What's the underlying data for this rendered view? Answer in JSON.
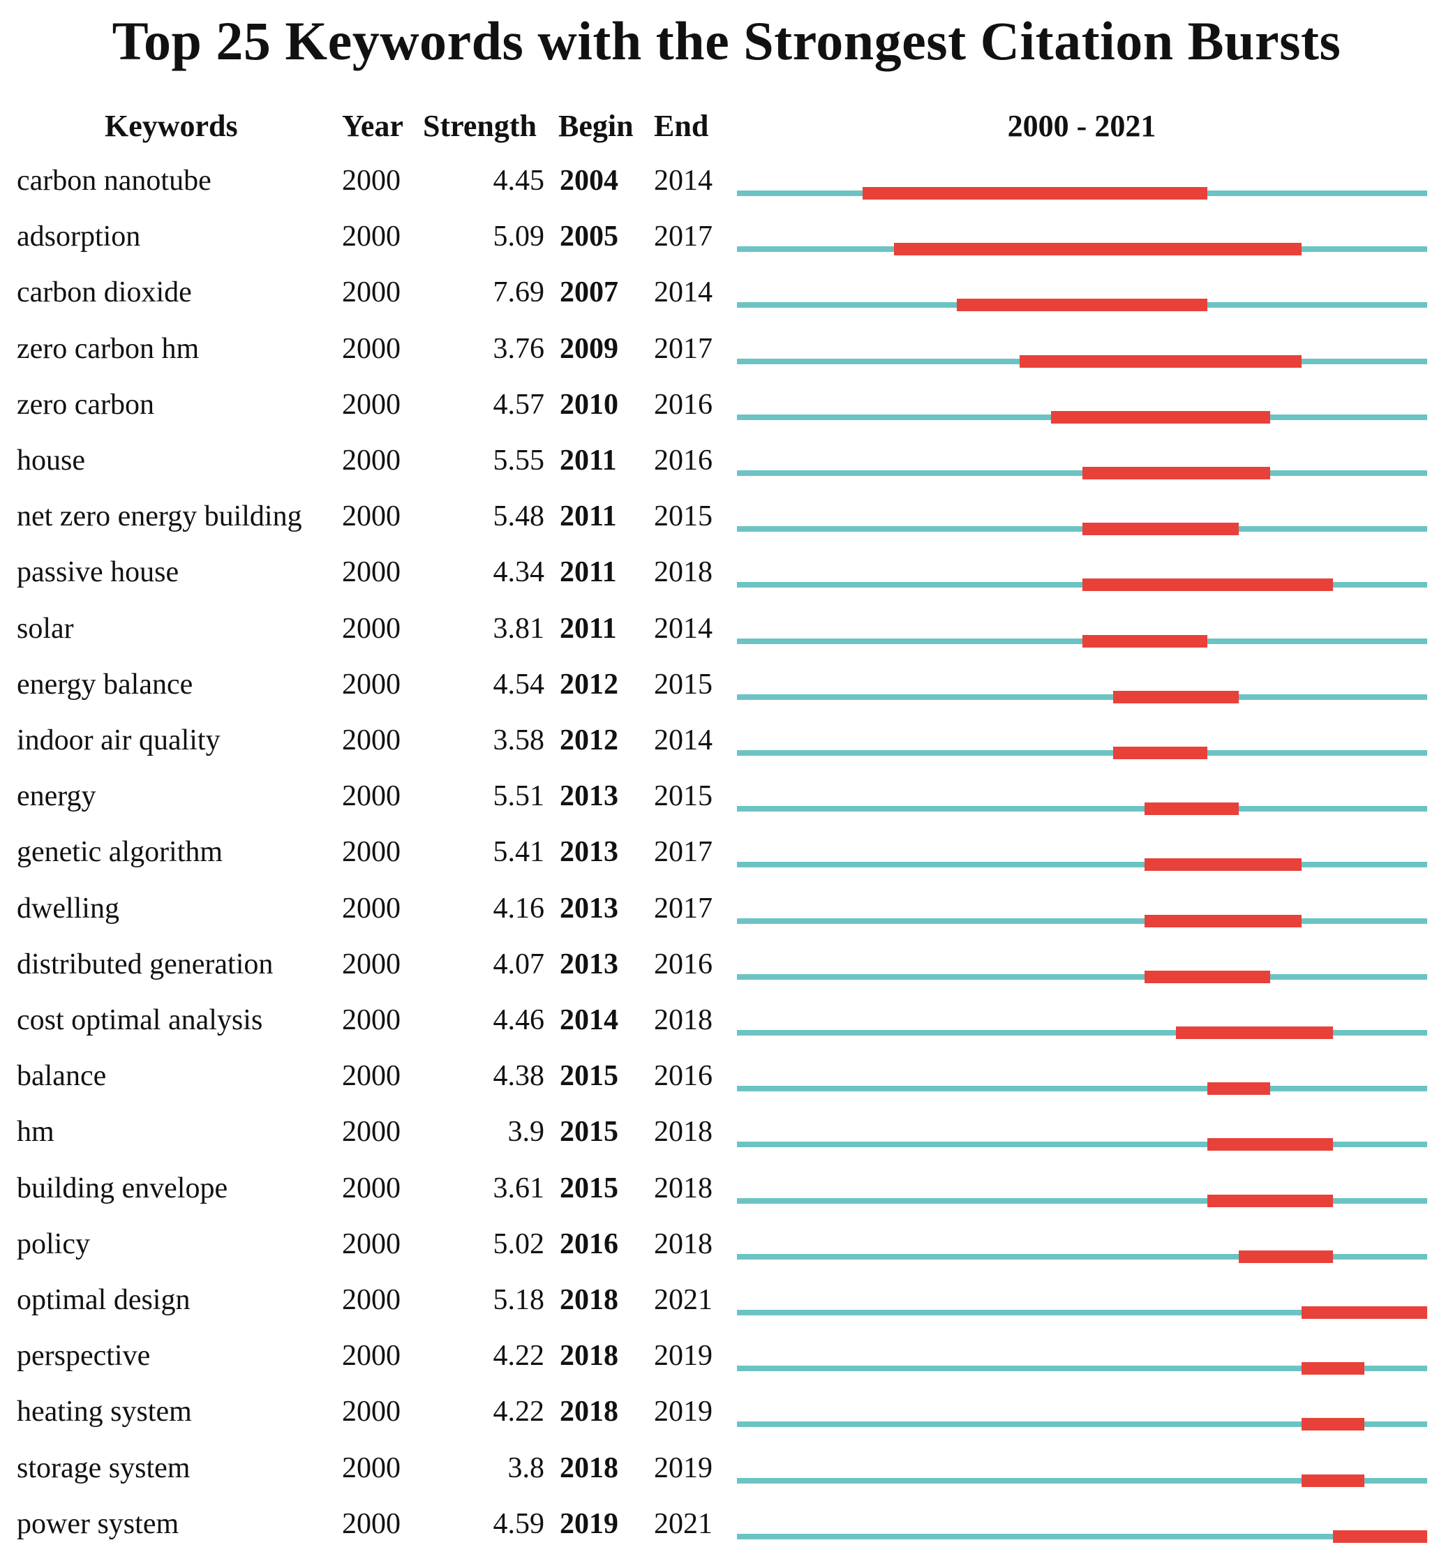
{
  "chart_data": {
    "type": "timeline",
    "title": "Top 25 Keywords with the Strongest Citation Bursts",
    "columns": [
      "Keywords",
      "Year",
      "Strength",
      "Begin",
      "End"
    ],
    "range_label": "2000 - 2021",
    "range": [
      2000,
      2021
    ],
    "colors": {
      "baseline": "#6cc3c3",
      "burst": "#e8413a"
    },
    "rows": [
      {
        "keyword": "carbon nanotube",
        "year": "2000",
        "strength": "4.45",
        "begin": "2004",
        "end": "2014"
      },
      {
        "keyword": "adsorption",
        "year": "2000",
        "strength": "5.09",
        "begin": "2005",
        "end": "2017"
      },
      {
        "keyword": "carbon dioxide",
        "year": "2000",
        "strength": "7.69",
        "begin": "2007",
        "end": "2014"
      },
      {
        "keyword": "zero carbon hm",
        "year": "2000",
        "strength": "3.76",
        "begin": "2009",
        "end": "2017"
      },
      {
        "keyword": "zero carbon",
        "year": "2000",
        "strength": "4.57",
        "begin": "2010",
        "end": "2016"
      },
      {
        "keyword": "house",
        "year": "2000",
        "strength": "5.55",
        "begin": "2011",
        "end": "2016"
      },
      {
        "keyword": "net zero energy building",
        "year": "2000",
        "strength": "5.48",
        "begin": "2011",
        "end": "2015"
      },
      {
        "keyword": "passive house",
        "year": "2000",
        "strength": "4.34",
        "begin": "2011",
        "end": "2018"
      },
      {
        "keyword": "solar",
        "year": "2000",
        "strength": "3.81",
        "begin": "2011",
        "end": "2014"
      },
      {
        "keyword": "energy balance",
        "year": "2000",
        "strength": "4.54",
        "begin": "2012",
        "end": "2015"
      },
      {
        "keyword": "indoor air quality",
        "year": "2000",
        "strength": "3.58",
        "begin": "2012",
        "end": "2014"
      },
      {
        "keyword": "energy",
        "year": "2000",
        "strength": "5.51",
        "begin": "2013",
        "end": "2015"
      },
      {
        "keyword": "genetic algorithm",
        "year": "2000",
        "strength": "5.41",
        "begin": "2013",
        "end": "2017"
      },
      {
        "keyword": "dwelling",
        "year": "2000",
        "strength": "4.16",
        "begin": "2013",
        "end": "2017"
      },
      {
        "keyword": "distributed generation",
        "year": "2000",
        "strength": "4.07",
        "begin": "2013",
        "end": "2016"
      },
      {
        "keyword": "cost optimal analysis",
        "year": "2000",
        "strength": "4.46",
        "begin": "2014",
        "end": "2018"
      },
      {
        "keyword": "balance",
        "year": "2000",
        "strength": "4.38",
        "begin": "2015",
        "end": "2016"
      },
      {
        "keyword": "hm",
        "year": "2000",
        "strength": "3.9",
        "begin": "2015",
        "end": "2018"
      },
      {
        "keyword": "building envelope",
        "year": "2000",
        "strength": "3.61",
        "begin": "2015",
        "end": "2018"
      },
      {
        "keyword": "policy",
        "year": "2000",
        "strength": "5.02",
        "begin": "2016",
        "end": "2018"
      },
      {
        "keyword": "optimal design",
        "year": "2000",
        "strength": "5.18",
        "begin": "2018",
        "end": "2021"
      },
      {
        "keyword": "perspective",
        "year": "2000",
        "strength": "4.22",
        "begin": "2018",
        "end": "2019"
      },
      {
        "keyword": "heating system",
        "year": "2000",
        "strength": "4.22",
        "begin": "2018",
        "end": "2019"
      },
      {
        "keyword": "storage system",
        "year": "2000",
        "strength": "3.8",
        "begin": "2018",
        "end": "2019"
      },
      {
        "keyword": "power system",
        "year": "2000",
        "strength": "4.59",
        "begin": "2019",
        "end": "2021"
      }
    ]
  }
}
